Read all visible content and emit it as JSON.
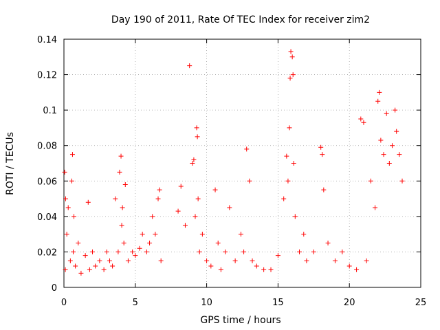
{
  "chart_data": {
    "type": "scatter",
    "title": "Day 190 of 2011, Rate Of TEC Index for receiver zim2",
    "xlabel": "GPS time / hours",
    "ylabel": "ROTI / TECUs",
    "xlim": [
      0,
      25
    ],
    "ylim": [
      0,
      0.14
    ],
    "xticks": [
      0,
      5,
      10,
      15,
      20,
      25
    ],
    "xtick_labels": [
      "0",
      "5",
      "10",
      "15",
      "20",
      "25"
    ],
    "yticks": [
      0,
      0.02,
      0.04,
      0.06,
      0.08,
      0.1,
      0.12,
      0.14
    ],
    "ytick_labels": [
      "0",
      "0.02",
      "0.04",
      "0.06",
      "0.08",
      "0.1",
      "0.12",
      "0.14"
    ],
    "grid": true,
    "marker": "+",
    "color": "#ff0000",
    "series": [
      {
        "name": "ROTI",
        "x": [
          0.05,
          0.1,
          0.12,
          0.2,
          0.3,
          0.45,
          0.55,
          0.6,
          0.65,
          0.7,
          0.8,
          1.0,
          1.2,
          1.5,
          1.7,
          1.8,
          2.0,
          2.2,
          2.5,
          2.8,
          3.0,
          3.2,
          3.4,
          3.6,
          3.8,
          3.9,
          4.0,
          4.05,
          4.1,
          4.2,
          4.3,
          4.5,
          4.8,
          5.0,
          5.3,
          5.5,
          5.8,
          6.0,
          6.2,
          6.4,
          6.6,
          6.7,
          6.8,
          8.0,
          8.2,
          8.5,
          8.8,
          9.0,
          9.1,
          9.2,
          9.3,
          9.35,
          9.4,
          9.5,
          9.7,
          10.0,
          10.3,
          10.6,
          10.8,
          11.0,
          11.3,
          11.6,
          12.0,
          12.4,
          12.6,
          12.8,
          13.0,
          13.2,
          13.5,
          14.0,
          14.5,
          15.0,
          15.4,
          15.6,
          15.7,
          15.8,
          15.85,
          15.9,
          16.0,
          16.05,
          16.1,
          16.2,
          16.5,
          16.8,
          17.0,
          17.5,
          18.0,
          18.1,
          18.2,
          18.5,
          19.0,
          19.5,
          20.0,
          20.5,
          20.8,
          21.0,
          21.2,
          21.5,
          21.8,
          22.0,
          22.1,
          22.2,
          22.4,
          22.6,
          22.8,
          23.0,
          23.2,
          23.3,
          23.5,
          23.7
        ],
        "y": [
          0.065,
          0.01,
          0.05,
          0.03,
          0.045,
          0.015,
          0.06,
          0.075,
          0.02,
          0.04,
          0.012,
          0.025,
          0.008,
          0.018,
          0.048,
          0.01,
          0.02,
          0.012,
          0.015,
          0.01,
          0.02,
          0.015,
          0.012,
          0.05,
          0.02,
          0.065,
          0.074,
          0.035,
          0.045,
          0.025,
          0.058,
          0.015,
          0.02,
          0.018,
          0.022,
          0.03,
          0.02,
          0.025,
          0.04,
          0.03,
          0.05,
          0.055,
          0.015,
          0.043,
          0.057,
          0.035,
          0.125,
          0.07,
          0.072,
          0.04,
          0.09,
          0.085,
          0.05,
          0.02,
          0.03,
          0.015,
          0.012,
          0.055,
          0.025,
          0.01,
          0.02,
          0.045,
          0.015,
          0.03,
          0.02,
          0.078,
          0.06,
          0.015,
          0.012,
          0.01,
          0.01,
          0.018,
          0.05,
          0.074,
          0.06,
          0.09,
          0.118,
          0.133,
          0.13,
          0.12,
          0.07,
          0.04,
          0.02,
          0.03,
          0.015,
          0.02,
          0.079,
          0.075,
          0.055,
          0.025,
          0.015,
          0.02,
          0.012,
          0.01,
          0.095,
          0.093,
          0.015,
          0.06,
          0.045,
          0.105,
          0.11,
          0.083,
          0.075,
          0.098,
          0.07,
          0.08,
          0.1,
          0.088,
          0.075,
          0.06
        ]
      }
    ]
  }
}
